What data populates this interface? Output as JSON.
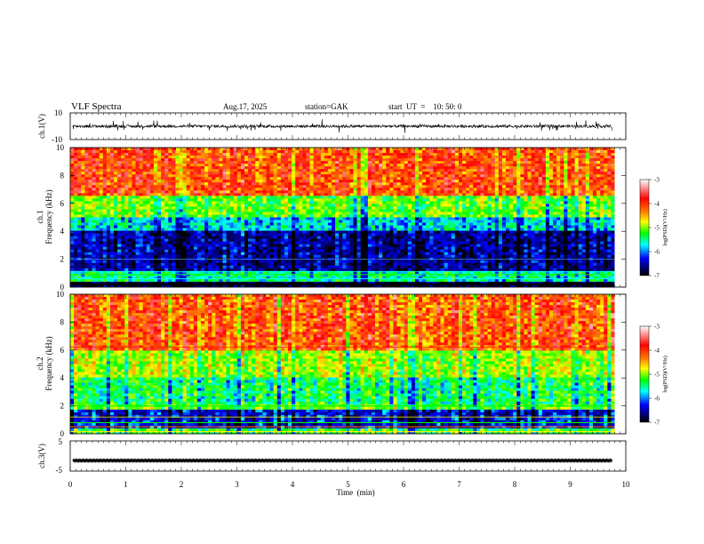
{
  "header": {
    "title": "VLF  Spectra",
    "date": "Aug.17, 2025",
    "station": "station=GAK",
    "start": "start  UT  =    10: 50: 0"
  },
  "colorbar": {
    "label": "log(PSD)(V²/Hz)",
    "ticks": [
      "-3",
      "-4",
      "-5",
      "-6",
      "-7"
    ],
    "colors": [
      "#ffffff",
      "#ff0000",
      "#ffff00",
      "#00ff00",
      "#00ffff",
      "#0000ff",
      "#000000"
    ]
  },
  "chart_data": [
    {
      "type": "line",
      "panel": "ch1-waveform",
      "ylabel": "ch.1(V)",
      "ylim": [
        -10,
        10
      ],
      "yticks": [
        "10",
        "-10"
      ],
      "x": [
        0,
        1,
        2,
        3,
        4,
        5,
        6,
        7,
        8,
        9,
        9.8
      ],
      "values": [
        0,
        0,
        0,
        0,
        0,
        0,
        0,
        0,
        0,
        0,
        0
      ]
    },
    {
      "type": "heatmap",
      "panel": "ch1-spectrogram",
      "ylabel": "ch.1\nFrequency  (kHz)",
      "ylabel_lines": [
        "ch.1",
        "Frequency  (kHz)"
      ],
      "ylim": [
        0,
        10
      ],
      "yticks": [
        "0",
        "2",
        "4",
        "6",
        "8",
        "10"
      ],
      "xlim": [
        0,
        10
      ],
      "data_end_min": 9.8,
      "bands_khz": [
        [
          0,
          0.3,
          -6.8
        ],
        [
          0.3,
          1.2,
          -5.5
        ],
        [
          1.2,
          4.0,
          -6.5
        ],
        [
          4.0,
          5.0,
          -5.7
        ],
        [
          5.0,
          6.5,
          -5.0
        ],
        [
          6.5,
          10,
          -3.9
        ]
      ]
    },
    {
      "type": "heatmap",
      "panel": "ch2-spectrogram",
      "ylabel": "ch.2\nFrequency  (kHz)",
      "ylabel_lines": [
        "ch.2",
        "Frequency  (kHz)"
      ],
      "ylim": [
        0,
        10
      ],
      "yticks": [
        "0",
        "2",
        "4",
        "6",
        "8",
        "10"
      ],
      "xlim": [
        0,
        10
      ],
      "data_end_min": 9.8,
      "bands_khz": [
        [
          0,
          0.3,
          -5.2
        ],
        [
          0.3,
          1.8,
          -6.3
        ],
        [
          1.8,
          2.2,
          -5.0
        ],
        [
          2.2,
          4.0,
          -5.3
        ],
        [
          4.0,
          6.0,
          -4.8
        ],
        [
          6.0,
          10,
          -3.9
        ]
      ]
    },
    {
      "type": "line",
      "panel": "ch3-waveform",
      "ylabel": "ch.3(V)",
      "ylim": [
        -5,
        5
      ],
      "yticks": [
        "5",
        "-5"
      ],
      "x": [
        0,
        9.8
      ],
      "values": [
        -1.5,
        -1.5
      ]
    }
  ],
  "xaxis": {
    "label": "Time  (min)",
    "ticks": [
      "0",
      "1",
      "2",
      "3",
      "4",
      "5",
      "6",
      "7",
      "8",
      "9",
      "10"
    ]
  }
}
